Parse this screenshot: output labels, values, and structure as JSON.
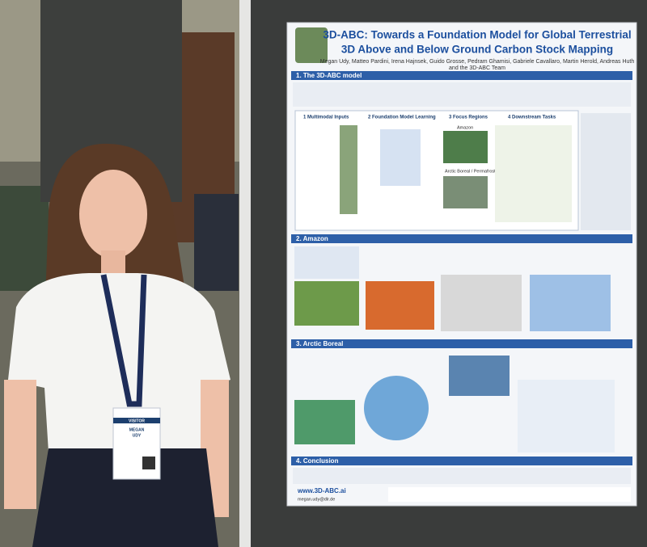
{
  "poster": {
    "title_line1": "3D-ABC: Towards a Foundation Model for Global Terrestrial",
    "title_line2": "3D Above and Below Ground Carbon Stock Mapping",
    "authors": "Megan Udy, Matteo Pardini, Irena Hajnsek, Guido Grosse, Pedram Ghamisi, Gabriele Cavallaro, Martin Herold, Andreas Huth",
    "authors_2": "and the 3D-ABC Team",
    "sections": [
      "1. The 3D-ABC model",
      "2. Amazon",
      "3. Arctic Boreal",
      "4. Conclusion"
    ],
    "model_steps": [
      "1 Multimodal Inputs",
      "2 Foundation Model Learning",
      "3 Focus Regions",
      "4 Downstream Tasks"
    ],
    "regions": [
      "Amazon",
      "Arctic Boreal / Permafrost"
    ],
    "footer_url": "www.3D-ABC.ai",
    "footer_email": "megan.udy@dlr.de"
  },
  "badge": {
    "label": "VISITOR",
    "first_name": "MEGAN",
    "last_name": "UDY"
  }
}
